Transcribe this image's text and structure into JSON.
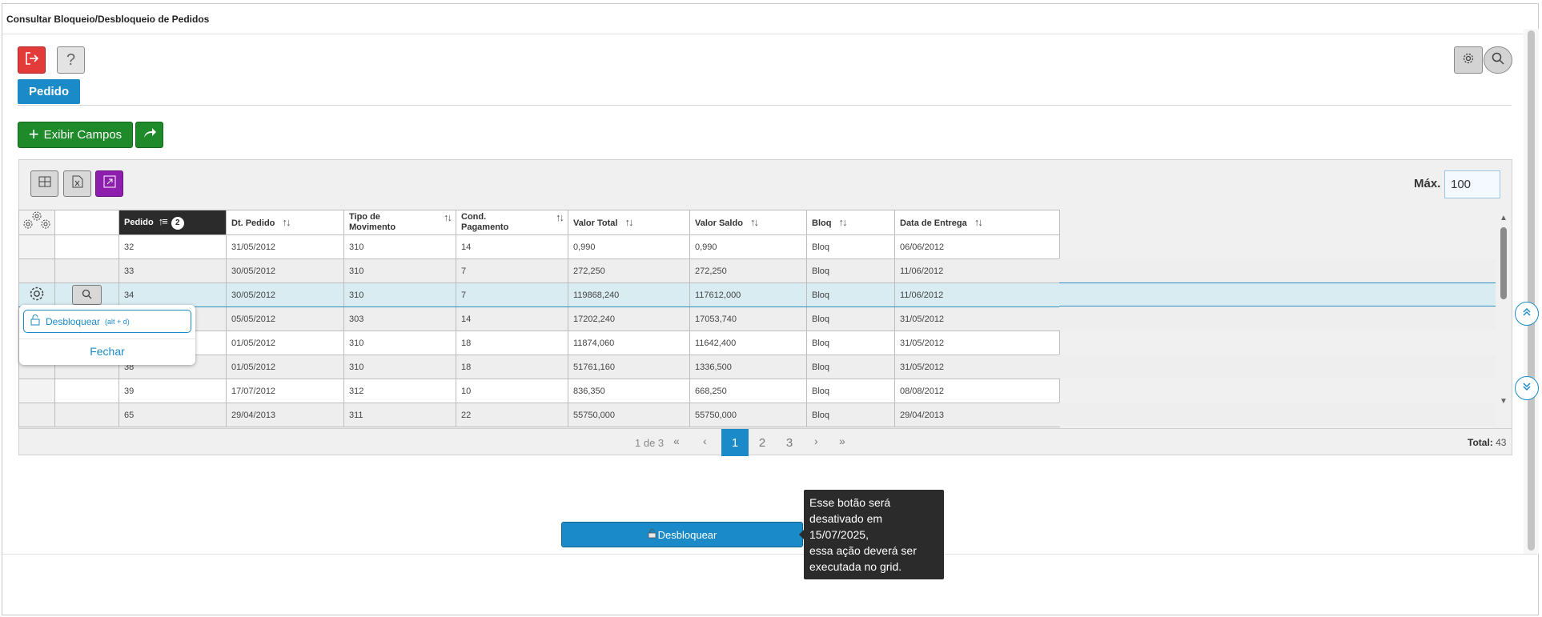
{
  "window": {
    "title": "Consultar Bloqueio/Desbloqueio de Pedidos"
  },
  "toolbar": {
    "exit_icon": "exit-icon",
    "help_label": "?",
    "settings_icon": "gear-icon",
    "search_icon": "search-icon"
  },
  "tabs": [
    {
      "label": "Pedido",
      "active": true
    }
  ],
  "actions": {
    "exibir_campos_label": "Exibir Campos",
    "share_icon": "share-icon"
  },
  "grid": {
    "max_label": "Máx.",
    "max_value": "100",
    "columns": [
      "Pedido",
      "Dt. Pedido",
      "Tipo de Movimento",
      "Cond. Pagamento",
      "Valor Total",
      "Valor Saldo",
      "Bloq",
      "Data de Entrega"
    ],
    "sort_badge": "2",
    "rows": [
      [
        "32",
        "31/05/2012",
        "310",
        "14",
        "0,990",
        "0,990",
        "Bloq",
        "06/06/2012"
      ],
      [
        "33",
        "30/05/2012",
        "310",
        "7",
        "272,250",
        "272,250",
        "Bloq",
        "11/06/2012"
      ],
      [
        "34",
        "30/05/2012",
        "310",
        "7",
        "119868,240",
        "117612,000",
        "Bloq",
        "11/06/2012"
      ],
      [
        "",
        "05/05/2012",
        "303",
        "14",
        "17202,240",
        "17053,740",
        "Bloq",
        "31/05/2012"
      ],
      [
        "",
        "01/05/2012",
        "310",
        "18",
        "11874,060",
        "11642,400",
        "Bloq",
        "31/05/2012"
      ],
      [
        "38",
        "01/05/2012",
        "310",
        "18",
        "51761,160",
        "1336,500",
        "Bloq",
        "31/05/2012"
      ],
      [
        "39",
        "17/07/2012",
        "312",
        "10",
        "836,350",
        "668,250",
        "Bloq",
        "08/08/2012"
      ],
      [
        "65",
        "29/04/2013",
        "311",
        "22",
        "55750,000",
        "55750,000",
        "Bloq",
        "29/04/2013"
      ]
    ],
    "selected_row_index": 2,
    "pagination": {
      "info": "1 de 3",
      "first": "«",
      "prev": "‹",
      "pages": [
        "1",
        "2",
        "3"
      ],
      "active_page": "1",
      "next": "›",
      "last": "»",
      "total_label": "Total:",
      "total_value": "43"
    }
  },
  "row_menu": {
    "unlock_label": "Desbloquear",
    "unlock_shortcut": "(alt + d)",
    "close_label": "Fechar"
  },
  "footer": {
    "unlock_button_label": "Desbloquear",
    "tooltip": [
      "Esse botão será",
      "desativado em",
      "15/07/2025,",
      "essa ação deverá ser",
      "executada no grid."
    ]
  },
  "colors": {
    "primary": "#1a8bc8",
    "danger": "#e33a3a",
    "success": "#1e8a2a",
    "accent": "#8e1fae",
    "header_dark": "#2b2b2b"
  }
}
